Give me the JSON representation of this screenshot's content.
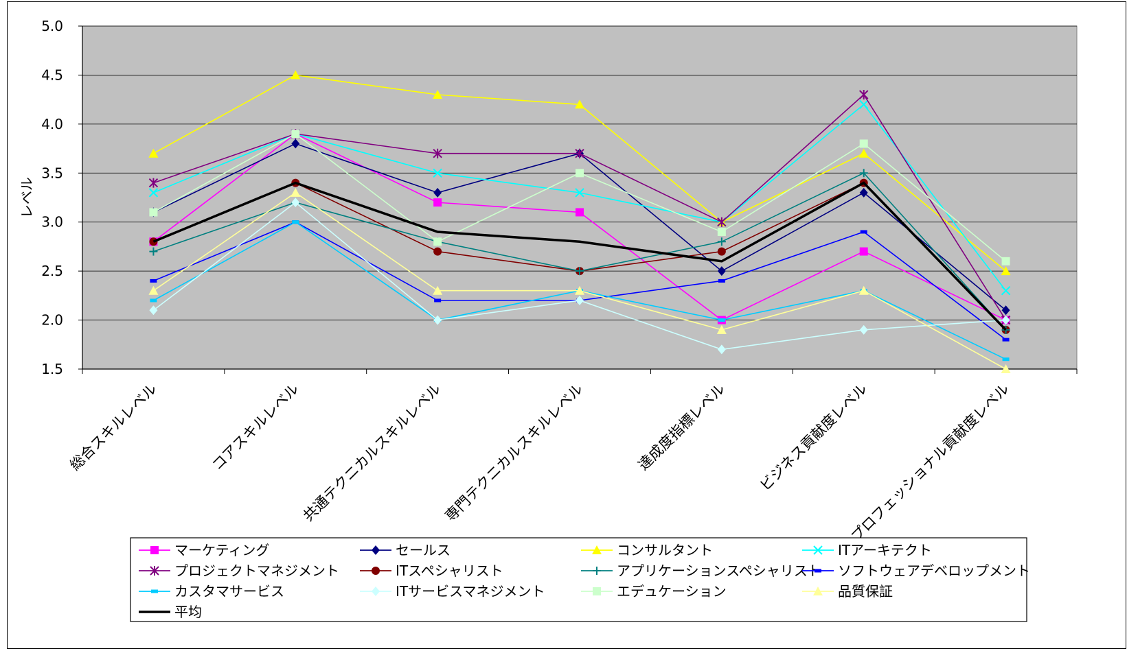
{
  "chart_data": {
    "type": "line",
    "title": "",
    "xlabel": "",
    "ylabel": "レベル",
    "ylim": [
      1.5,
      5.0
    ],
    "yticks": [
      "1.5",
      "2.0",
      "2.5",
      "3.0",
      "3.5",
      "4.0",
      "4.5",
      "5.0"
    ],
    "grid": true,
    "legend_position": "bottom",
    "plot_background": "#c0c0c0",
    "categories": [
      "総合スキルレベル",
      "コアスキルレベル",
      "共通テクニカルスキルレベル",
      "専門テクニカルスキルレベル",
      "達成度指標レベル",
      "ビジネス貢献度レベル",
      "プロフェッショナル貢献度レベル"
    ],
    "series": [
      {
        "name": "マーケティング",
        "color": "#ff00ff",
        "marker": "square",
        "values": [
          2.8,
          3.9,
          3.2,
          3.1,
          2.0,
          2.7,
          2.0
        ]
      },
      {
        "name": "セールス",
        "color": "#000080",
        "marker": "diamond",
        "values": [
          3.1,
          3.8,
          3.3,
          3.7,
          2.5,
          3.3,
          2.1
        ]
      },
      {
        "name": "コンサルタント",
        "color": "#ffff00",
        "marker": "triangle",
        "values": [
          3.7,
          4.5,
          4.3,
          4.2,
          3.0,
          3.7,
          2.5
        ]
      },
      {
        "name": "ITアーキテクト",
        "color": "#00ffff",
        "marker": "x",
        "values": [
          3.3,
          3.9,
          3.5,
          3.3,
          3.0,
          4.2,
          2.3
        ]
      },
      {
        "name": "プロジェクトマネジメント",
        "color": "#800080",
        "marker": "star",
        "values": [
          3.4,
          3.9,
          3.7,
          3.7,
          3.0,
          4.3,
          2.0
        ]
      },
      {
        "name": "ITスペシャリスト",
        "color": "#800000",
        "marker": "circle",
        "values": [
          2.8,
          3.4,
          2.7,
          2.5,
          2.7,
          3.4,
          1.9
        ]
      },
      {
        "name": "アプリケーションスペシャリスト",
        "color": "#008080",
        "marker": "plus",
        "values": [
          2.7,
          3.2,
          2.8,
          2.5,
          2.8,
          3.5,
          1.9
        ]
      },
      {
        "name": "ソフトウェアデベロップメント",
        "color": "#0000ff",
        "marker": "dash",
        "values": [
          2.4,
          3.0,
          2.2,
          2.2,
          2.4,
          2.9,
          1.8
        ]
      },
      {
        "name": "カスタマサービス",
        "color": "#00ccff",
        "marker": "dash",
        "values": [
          2.2,
          3.0,
          2.0,
          2.3,
          2.0,
          2.3,
          1.6
        ]
      },
      {
        "name": "ITサービスマネジメント",
        "color": "#ccffff",
        "marker": "diamond",
        "values": [
          2.1,
          3.2,
          2.0,
          2.2,
          1.7,
          1.9,
          2.0
        ]
      },
      {
        "name": "エデュケーション",
        "color": "#ccffcc",
        "marker": "square",
        "values": [
          3.1,
          3.9,
          2.8,
          3.5,
          2.9,
          3.8,
          2.6
        ]
      },
      {
        "name": "品質保証",
        "color": "#ffff99",
        "marker": "triangle",
        "values": [
          2.3,
          3.3,
          2.3,
          2.3,
          1.9,
          2.3,
          1.5
        ]
      },
      {
        "name": "平均",
        "color": "#000000",
        "marker": "none",
        "thick": true,
        "values": [
          2.8,
          3.4,
          2.9,
          2.8,
          2.6,
          3.4,
          1.9
        ]
      }
    ]
  }
}
